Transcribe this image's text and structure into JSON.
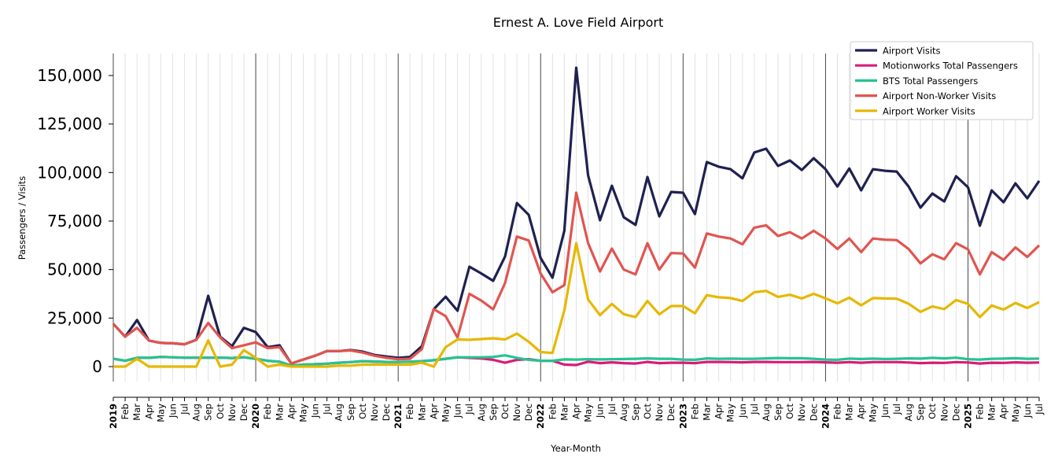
{
  "chart_data": {
    "type": "line",
    "title": "Ernest A. Love Field Airport",
    "xlabel": "Year-Month",
    "ylabel": "Passengers / Visits",
    "ylim": [
      -8000,
      162000
    ],
    "yticks": [
      0,
      25000,
      50000,
      75000,
      100000,
      125000,
      150000
    ],
    "ytick_labels": [
      "0",
      "25,000",
      "50,000",
      "75,000",
      "100,000",
      "125,000",
      "150,000"
    ],
    "start": "2019-01",
    "years": [
      "2019",
      "2020",
      "2021",
      "2022",
      "2023",
      "2024",
      "2025"
    ],
    "months": [
      "Jan",
      "Feb",
      "Mar",
      "Apr",
      "May",
      "Jun",
      "Jul",
      "Aug",
      "Sep",
      "Oct",
      "Nov",
      "Dec"
    ],
    "n_points": 79,
    "legend_position": "top-right",
    "grid": "vertical monthly",
    "series": [
      {
        "name": "Airport Visits",
        "color": "#1f2150",
        "values": [
          22000,
          15400,
          24000,
          13400,
          12200,
          12000,
          11500,
          13800,
          36500,
          15400,
          10500,
          20000,
          17800,
          10000,
          11000,
          1600,
          3600,
          5600,
          8000,
          8000,
          8500,
          7700,
          6000,
          5200,
          4500,
          5000,
          10500,
          29600,
          36000,
          28800,
          51500,
          48000,
          44200,
          56700,
          84300,
          78200,
          56000,
          45800,
          70000,
          154000,
          98500,
          75400,
          93200,
          77000,
          73000,
          97700,
          77400,
          90000,
          89600,
          78600,
          105400,
          103000,
          101700,
          97000,
          110300,
          112300,
          103400,
          106200,
          101300,
          107400,
          101700,
          92800,
          102100,
          90800,
          101700,
          100900,
          100500,
          92800,
          81900,
          89200,
          85100,
          98100,
          92400,
          72600,
          90800,
          84700,
          94400,
          86700,
          95700
        ]
      },
      {
        "name": "Motionworks Total Passengers",
        "color": "#d81b7c",
        "values": [
          4000,
          3000,
          4500,
          4500,
          5000,
          4800,
          4600,
          4600,
          4600,
          4600,
          4400,
          4800,
          4000,
          3000,
          2500,
          500,
          1000,
          1200,
          1500,
          2000,
          2300,
          2800,
          2600,
          2400,
          2400,
          2500,
          2800,
          3300,
          4000,
          4800,
          4500,
          4200,
          3500,
          2000,
          3500,
          3800,
          3000,
          3000,
          1000,
          800,
          2500,
          1800,
          2200,
          1800,
          1600,
          2400,
          1800,
          2000,
          2000,
          1800,
          2400,
          2400,
          2300,
          2200,
          2400,
          2400,
          2300,
          2300,
          2300,
          2400,
          2200,
          2000,
          2300,
          2000,
          2300,
          2300,
          2300,
          2100,
          1800,
          2000,
          1900,
          2300,
          2100,
          1600,
          2000,
          1900,
          2200,
          2000,
          2100
        ]
      },
      {
        "name": "BTS Total Passengers",
        "color": "#26c48f",
        "values": [
          4000,
          3000,
          4500,
          4500,
          5000,
          4800,
          4600,
          4600,
          4600,
          4600,
          4400,
          4800,
          4000,
          3000,
          2500,
          500,
          1000,
          1200,
          1500,
          2000,
          2300,
          2800,
          2600,
          2400,
          2400,
          2500,
          2800,
          3300,
          4000,
          4800,
          4800,
          4800,
          5000,
          5800,
          4500,
          3500,
          3000,
          3000,
          3700,
          3600,
          3800,
          3700,
          3800,
          3900,
          4000,
          4200,
          4000,
          4000,
          3600,
          3500,
          4200,
          4000,
          4100,
          4000,
          4000,
          4200,
          4400,
          4300,
          4300,
          4000,
          3600,
          3500,
          4100,
          3900,
          4100,
          3900,
          4000,
          4200,
          4100,
          4500,
          4200,
          4600,
          3800,
          3600,
          4000,
          4100,
          4300,
          4000,
          4100
        ]
      },
      {
        "name": "Airport Non-Worker Visits",
        "color": "#e05550",
        "values": [
          22000,
          15400,
          20000,
          13400,
          12200,
          12000,
          11500,
          13800,
          22500,
          15000,
          9500,
          11000,
          12500,
          9500,
          10000,
          1600,
          3600,
          5600,
          8000,
          8000,
          8300,
          7200,
          5600,
          4500,
          3800,
          4000,
          9000,
          29600,
          26000,
          15000,
          37500,
          34000,
          29500,
          43000,
          67000,
          65000,
          48000,
          38300,
          42000,
          89600,
          63600,
          49000,
          60800,
          50000,
          47500,
          63600,
          50000,
          58500,
          58300,
          51000,
          68600,
          67000,
          66000,
          63000,
          71600,
          72800,
          67300,
          69300,
          66000,
          70000,
          66000,
          60600,
          66000,
          59000,
          66000,
          65400,
          65200,
          60600,
          53200,
          57900,
          55300,
          63600,
          60400,
          47500,
          59000,
          55000,
          61400,
          56500,
          62500
        ]
      },
      {
        "name": "Airport Worker Visits",
        "color": "#e6b800",
        "values": [
          0,
          0,
          4000,
          0,
          0,
          0,
          0,
          0,
          13500,
          0,
          1000,
          8500,
          4500,
          0,
          1000,
          0,
          0,
          0,
          0,
          500,
          500,
          1000,
          1000,
          1000,
          1000,
          1000,
          2000,
          0,
          10000,
          14000,
          13800,
          14200,
          14600,
          14000,
          17000,
          12800,
          7500,
          7000,
          29000,
          63600,
          34600,
          26500,
          32300,
          27000,
          25500,
          33800,
          26900,
          31200,
          31200,
          27500,
          36800,
          35700,
          35300,
          33800,
          38300,
          39000,
          35900,
          37000,
          35100,
          37500,
          35200,
          32600,
          35500,
          31600,
          35300,
          35100,
          35000,
          32400,
          28200,
          31000,
          29600,
          34300,
          32300,
          25500,
          31500,
          29400,
          32800,
          30200,
          33200
        ]
      }
    ]
  }
}
